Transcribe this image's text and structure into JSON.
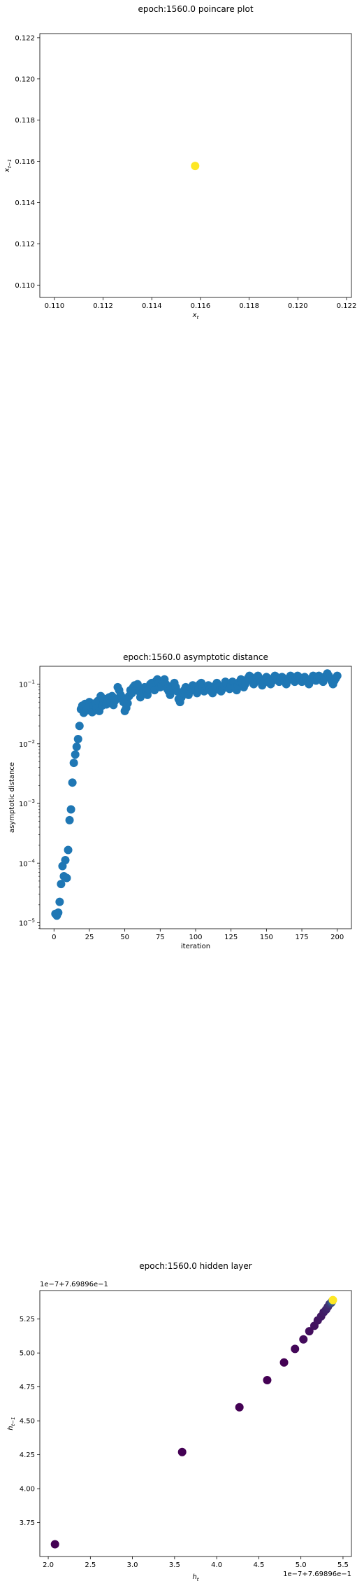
{
  "chart_data": [
    {
      "type": "scatter",
      "title": "epoch:1560.0 poincare plot",
      "xlabel": "x",
      "xlabel_sub": "t",
      "ylabel": "x",
      "ylabel_sub": "t−1",
      "xlim": [
        0.1094,
        0.1222
      ],
      "ylim": [
        0.1094,
        0.1222
      ],
      "xticks": [
        "0.110",
        "0.112",
        "0.114",
        "0.116",
        "0.118",
        "0.120",
        "0.122"
      ],
      "yticks": [
        "0.110",
        "0.112",
        "0.114",
        "0.116",
        "0.118",
        "0.120",
        "0.122"
      ],
      "xtick_values": [
        0.11,
        0.112,
        0.114,
        0.116,
        0.118,
        0.12,
        0.122
      ],
      "ytick_values": [
        0.11,
        0.112,
        0.114,
        0.116,
        0.118,
        0.12,
        0.122
      ],
      "grid": false,
      "points": [
        {
          "x": 0.11578,
          "y": 0.11578
        }
      ],
      "color": "#fde725"
    },
    {
      "type": "scatter",
      "title": "epoch:1560.0 asymptotic distance",
      "xlabel": "iteration",
      "ylabel": "asymptotic distance",
      "yscale": "log",
      "xlim": [
        -10,
        210
      ],
      "ylim_exp": [
        -5.1,
        -0.7
      ],
      "xticks": [
        "0",
        "25",
        "50",
        "75",
        "100",
        "125",
        "150",
        "175",
        "200"
      ],
      "xtick_values": [
        0,
        25,
        50,
        75,
        100,
        125,
        150,
        175,
        200
      ],
      "yticks": [
        "10",
        "10",
        "10",
        "10",
        "10"
      ],
      "ytick_exponents": [
        "−5",
        "−4",
        "−3",
        "−2",
        "−1"
      ],
      "ytick_values_exp": [
        -5,
        -4,
        -3,
        -2,
        -1
      ],
      "grid": false,
      "color": "#1f77b4",
      "x": [
        1,
        2,
        3,
        4,
        5,
        6,
        7,
        8,
        9,
        10,
        11,
        12,
        13,
        14,
        15,
        16,
        17,
        18,
        19,
        20,
        21,
        22,
        23,
        24,
        25,
        26,
        27,
        28,
        29,
        30,
        31,
        32,
        33,
        34,
        35,
        36,
        37,
        38,
        39,
        40,
        41,
        42,
        43,
        44,
        45,
        46,
        47,
        48,
        49,
        50,
        51,
        52,
        53,
        54,
        55,
        56,
        57,
        58,
        59,
        60,
        61,
        62,
        63,
        64,
        65,
        66,
        67,
        68,
        69,
        70,
        71,
        72,
        73,
        74,
        75,
        76,
        77,
        78,
        79,
        80,
        81,
        82,
        83,
        84,
        85,
        86,
        87,
        88,
        89,
        90,
        91,
        92,
        93,
        94,
        95,
        96,
        97,
        98,
        99,
        100,
        101,
        102,
        103,
        104,
        105,
        106,
        107,
        108,
        109,
        110,
        111,
        112,
        113,
        114,
        115,
        116,
        117,
        118,
        119,
        120,
        121,
        122,
        123,
        124,
        125,
        126,
        127,
        128,
        129,
        130,
        131,
        132,
        133,
        134,
        135,
        136,
        137,
        138,
        139,
        140,
        141,
        142,
        143,
        144,
        145,
        146,
        147,
        148,
        149,
        150,
        151,
        152,
        153,
        154,
        155,
        156,
        157,
        158,
        159,
        160,
        161,
        162,
        163,
        164,
        165,
        166,
        167,
        168,
        169,
        170,
        171,
        172,
        173,
        174,
        175,
        176,
        177,
        178,
        179,
        180,
        181,
        182,
        183,
        184,
        185,
        186,
        187,
        188,
        189,
        190,
        191,
        192,
        193,
        194,
        195,
        196,
        197,
        198,
        199,
        200
      ],
      "log10_y": [
        -4.85,
        -4.88,
        -4.83,
        -4.65,
        -4.35,
        -4.05,
        -4.22,
        -3.95,
        -4.25,
        -3.78,
        -3.28,
        -3.1,
        -2.65,
        -2.32,
        -2.18,
        -2.05,
        -1.92,
        -1.7,
        -1.42,
        -1.36,
        -1.48,
        -1.33,
        -1.44,
        -1.4,
        -1.3,
        -1.38,
        -1.47,
        -1.35,
        -1.32,
        -1.4,
        -1.28,
        -1.45,
        -1.2,
        -1.36,
        -1.3,
        -1.25,
        -1.34,
        -1.26,
        -1.22,
        -1.3,
        -1.2,
        -1.35,
        -1.28,
        -1.25,
        -1.05,
        -1.1,
        -1.18,
        -1.22,
        -1.3,
        -1.45,
        -1.4,
        -1.32,
        -1.2,
        -1.1,
        -1.15,
        -1.05,
        -1.02,
        -1.08,
        -1.0,
        -1.12,
        -1.22,
        -1.15,
        -1.1,
        -1.05,
        -1.12,
        -1.18,
        -1.08,
        -1.0,
        -0.98,
        -1.05,
        -1.1,
        -0.95,
        -0.92,
        -0.98,
        -1.05,
        -1.02,
        -0.95,
        -0.92,
        -1.0,
        -1.08,
        -1.12,
        -1.18,
        -1.1,
        -1.02,
        -0.98,
        -1.05,
        -1.12,
        -1.25,
        -1.3,
        -1.22,
        -1.15,
        -1.1,
        -1.05,
        -1.12,
        -1.18,
        -1.12,
        -1.08,
        -1.02,
        -1.05,
        -1.1,
        -1.15,
        -1.08,
        -1.0,
        -0.98,
        -1.05,
        -1.12,
        -1.1,
        -1.05,
        -1.02,
        -1.08,
        -1.12,
        -1.15,
        -1.08,
        -1.02,
        -0.98,
        -1.05,
        -1.1,
        -1.12,
        -1.08,
        -1.02,
        -0.96,
        -1.0,
        -1.05,
        -1.08,
        -1.02,
        -0.96,
        -0.98,
        -1.05,
        -1.1,
        -1.02,
        -0.96,
        -0.92,
        -0.98,
        -1.05,
        -1.0,
        -0.95,
        -0.9,
        -0.86,
        -0.88,
        -0.94,
        -1.0,
        -0.96,
        -0.9,
        -0.86,
        -0.9,
        -0.96,
        -1.02,
        -0.98,
        -0.92,
        -0.88,
        -0.9,
        -0.96,
        -1.0,
        -0.95,
        -0.9,
        -0.86,
        -0.88,
        -0.92,
        -0.96,
        -0.92,
        -0.88,
        -0.9,
        -0.95,
        -1.0,
        -0.94,
        -0.9,
        -0.86,
        -0.88,
        -0.92,
        -0.96,
        -0.9,
        -0.86,
        -0.88,
        -0.92,
        -0.96,
        -0.92,
        -0.88,
        -0.92,
        -0.96,
        -1.0,
        -0.95,
        -0.9,
        -0.86,
        -0.9,
        -0.94,
        -0.9,
        -0.86,
        -0.88,
        -0.92,
        -0.96,
        -0.9,
        -0.86,
        -0.82,
        -0.86,
        -0.9,
        -0.95,
        -1.0,
        -0.94,
        -0.9,
        -0.86
      ]
    },
    {
      "type": "scatter",
      "title": "epoch:1560.0 hidden layer",
      "xlabel": "h",
      "xlabel_sub": "t",
      "ylabel": "h",
      "ylabel_sub": "t−1",
      "offset_text_y": "1e−7+7.69896e−1",
      "offset_text_x": "1e−7+7.69896e−1",
      "xlim": [
        1.9,
        5.6
      ],
      "ylim": [
        3.5,
        5.46
      ],
      "xticks": [
        "2.0",
        "2.5",
        "3.0",
        "3.5",
        "4.0",
        "4.5",
        "5.0",
        "5.5"
      ],
      "xtick_values": [
        2.0,
        2.5,
        3.0,
        3.5,
        4.0,
        4.5,
        5.0,
        5.5
      ],
      "yticks": [
        "3.75",
        "4.00",
        "4.25",
        "4.50",
        "4.75",
        "5.00",
        "5.25"
      ],
      "ytick_values": [
        3.75,
        4.0,
        4.25,
        4.5,
        4.75,
        5.0,
        5.25
      ],
      "grid": false,
      "colormap": "viridis",
      "points": [
        {
          "x": 2.08,
          "y": 3.59,
          "c": 0.0
        },
        {
          "x": 3.59,
          "y": 4.27,
          "c": 0.0
        },
        {
          "x": 4.27,
          "y": 4.6,
          "c": 0.0
        },
        {
          "x": 4.6,
          "y": 4.8,
          "c": 0.0
        },
        {
          "x": 4.8,
          "y": 4.93,
          "c": 0.0
        },
        {
          "x": 4.93,
          "y": 5.03,
          "c": 0.02
        },
        {
          "x": 5.03,
          "y": 5.1,
          "c": 0.03
        },
        {
          "x": 5.1,
          "y": 5.16,
          "c": 0.04
        },
        {
          "x": 5.16,
          "y": 5.2,
          "c": 0.05
        },
        {
          "x": 5.2,
          "y": 5.24,
          "c": 0.06
        },
        {
          "x": 5.24,
          "y": 5.27,
          "c": 0.07
        },
        {
          "x": 5.27,
          "y": 5.3,
          "c": 0.08
        },
        {
          "x": 5.3,
          "y": 5.32,
          "c": 0.1
        },
        {
          "x": 5.32,
          "y": 5.34,
          "c": 0.12
        },
        {
          "x": 5.34,
          "y": 5.36,
          "c": 0.15
        },
        {
          "x": 5.36,
          "y": 5.37,
          "c": 0.2
        },
        {
          "x": 5.37,
          "y": 5.38,
          "c": 0.3
        },
        {
          "x": 5.38,
          "y": 5.39,
          "c": 1.0
        }
      ]
    }
  ]
}
